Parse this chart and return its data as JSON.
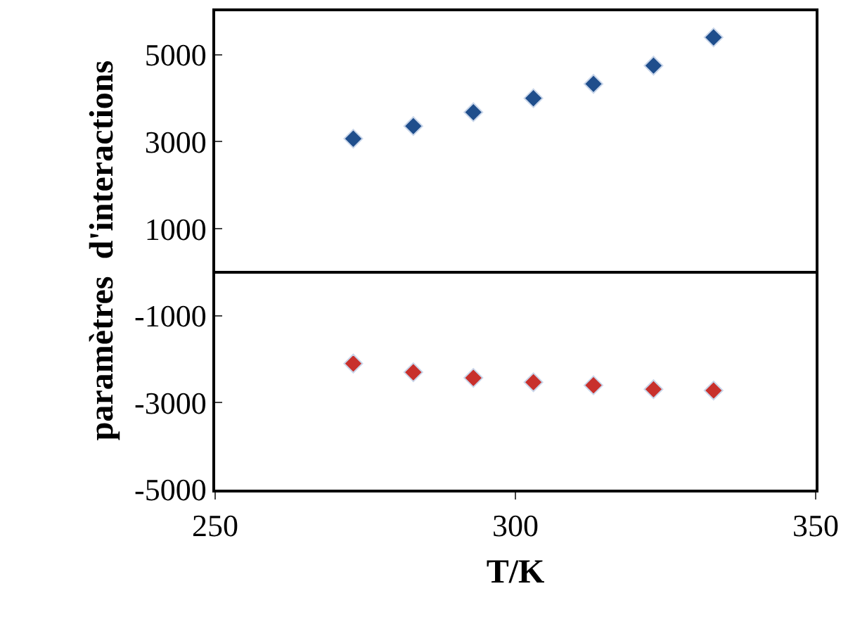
{
  "chart_data": {
    "type": "scatter",
    "xlabel": "T/K",
    "ylabel": "paramètres  d'interactions",
    "x": [
      273,
      283,
      293,
      303,
      313,
      323,
      333
    ],
    "series": [
      {
        "color": "#1f4e8c",
        "values": [
          3070,
          3360,
          3680,
          4000,
          4330,
          4750,
          5400
        ]
      },
      {
        "color": "#c8302c",
        "values": [
          -2100,
          -2300,
          -2430,
          -2530,
          -2600,
          -2690,
          -2720
        ]
      }
    ],
    "xlim": [
      250,
      350
    ],
    "xticks": [
      250,
      300,
      350
    ],
    "ylim": [
      -5000,
      6000
    ],
    "yticks": [
      -5000,
      -3000,
      -1000,
      1000,
      3000,
      5000
    ],
    "grid": false,
    "marker": "diamond"
  }
}
